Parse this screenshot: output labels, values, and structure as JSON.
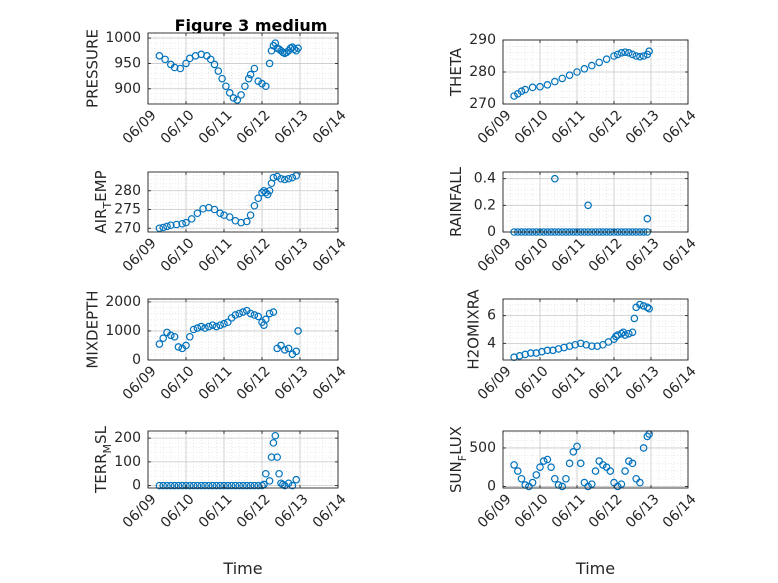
{
  "figure_title": "Figure 3 medium",
  "colors": {
    "marker": "#0072BD",
    "axis": "#262626",
    "grid": "#c8c8c8",
    "background": "#ffffff"
  },
  "chart_data": [
    {
      "type": "scatter",
      "title": "Figure 3 medium",
      "ylabel": "PRESSURE",
      "ylim": [
        870,
        1010
      ],
      "yticks": [
        900,
        950,
        1000
      ],
      "xlim": [
        0,
        5
      ],
      "xticks": [
        0,
        1,
        2,
        3,
        4,
        5
      ],
      "xticklabels": [
        "06/09",
        "06/10",
        "06/11",
        "06/12",
        "06/13",
        "06/14"
      ],
      "xlabel": "",
      "grid": true,
      "x": [
        0.3,
        0.45,
        0.6,
        0.7,
        0.85,
        1.0,
        1.1,
        1.25,
        1.4,
        1.55,
        1.65,
        1.75,
        1.85,
        1.95,
        2.05,
        2.15,
        2.25,
        2.35,
        2.45,
        2.55,
        2.65,
        2.7,
        2.8,
        2.9,
        3.0,
        3.1,
        3.2,
        3.25,
        3.3,
        3.35,
        3.4,
        3.45,
        3.5,
        3.55,
        3.6,
        3.65,
        3.7,
        3.75,
        3.8,
        3.85,
        3.9,
        3.95
      ],
      "y": [
        965,
        958,
        948,
        942,
        940,
        950,
        960,
        965,
        968,
        965,
        958,
        948,
        935,
        920,
        905,
        892,
        882,
        878,
        888,
        905,
        920,
        928,
        940,
        915,
        910,
        905,
        950,
        975,
        985,
        990,
        980,
        978,
        975,
        972,
        970,
        972,
        975,
        980,
        982,
        978,
        975,
        980
      ]
    },
    {
      "type": "scatter",
      "title": "",
      "ylabel": "THETA",
      "ylim": [
        270,
        290
      ],
      "yticks": [
        270,
        280,
        290
      ],
      "xlim": [
        0,
        5
      ],
      "xticks": [
        0,
        1,
        2,
        3,
        4,
        5
      ],
      "xticklabels": [
        "06/09",
        "06/10",
        "06/11",
        "06/12",
        "06/13",
        "06/14"
      ],
      "xlabel": "",
      "grid": true,
      "x": [
        0.3,
        0.4,
        0.5,
        0.6,
        0.8,
        1.0,
        1.2,
        1.4,
        1.6,
        1.8,
        2.0,
        2.2,
        2.4,
        2.6,
        2.8,
        3.0,
        3.1,
        3.2,
        3.3,
        3.4,
        3.5,
        3.6,
        3.7,
        3.8,
        3.9,
        3.95
      ],
      "y": [
        272.5,
        273.2,
        274,
        274.5,
        275.2,
        275.4,
        276,
        277,
        278,
        279,
        280,
        281,
        282,
        283,
        284,
        285,
        285.5,
        286,
        286.2,
        286,
        285.5,
        285,
        284.8,
        285,
        285.5,
        286.5
      ]
    },
    {
      "type": "scatter",
      "title": "",
      "ylabel": "AIR_TEMP",
      "ylim": [
        269,
        285
      ],
      "yticks": [
        270,
        275,
        280
      ],
      "xlim": [
        0,
        5
      ],
      "xticks": [
        0,
        1,
        2,
        3,
        4,
        5
      ],
      "xticklabels": [
        "06/09",
        "06/10",
        "06/11",
        "06/12",
        "06/13",
        "06/14"
      ],
      "xlabel": "",
      "grid": true,
      "x": [
        0.3,
        0.4,
        0.5,
        0.6,
        0.75,
        0.9,
        1.0,
        1.15,
        1.3,
        1.45,
        1.6,
        1.75,
        1.9,
        2.0,
        2.15,
        2.3,
        2.45,
        2.6,
        2.7,
        2.8,
        2.9,
        3.0,
        3.05,
        3.1,
        3.15,
        3.2,
        3.25,
        3.3,
        3.4,
        3.5,
        3.6,
        3.7,
        3.8,
        3.9
      ],
      "y": [
        270,
        270.2,
        270.5,
        270.8,
        271,
        271.2,
        271.5,
        272.5,
        274,
        275.2,
        275.5,
        275,
        274,
        273.5,
        273,
        272,
        271.5,
        271.8,
        273.5,
        276,
        278,
        279.5,
        280,
        279.5,
        279,
        280,
        282,
        283.5,
        283.8,
        283.2,
        283,
        283.2,
        283.5,
        284
      ]
    },
    {
      "type": "scatter",
      "title": "",
      "ylabel": "RAINFALL",
      "ylim": [
        0,
        0.45
      ],
      "yticks": [
        0,
        0.2,
        0.4
      ],
      "xlim": [
        0,
        5
      ],
      "xticks": [
        0,
        1,
        2,
        3,
        4,
        5
      ],
      "xticklabels": [
        "06/09",
        "06/10",
        "06/11",
        "06/12",
        "06/13",
        "06/14"
      ],
      "xlabel": "",
      "grid": true,
      "x": [
        0.3,
        0.4,
        0.5,
        0.6,
        0.7,
        0.8,
        0.9,
        1.0,
        1.1,
        1.2,
        1.3,
        1.4,
        1.5,
        1.6,
        1.7,
        1.8,
        1.9,
        2.0,
        2.1,
        2.2,
        2.3,
        2.4,
        2.5,
        2.6,
        2.7,
        2.8,
        2.9,
        3.0,
        3.1,
        3.2,
        3.3,
        3.4,
        3.5,
        3.6,
        3.7,
        3.8,
        3.9,
        1.4,
        2.3,
        3.9
      ],
      "y": [
        0,
        0,
        0,
        0,
        0,
        0,
        0,
        0,
        0,
        0,
        0,
        0,
        0,
        0,
        0,
        0,
        0,
        0,
        0,
        0,
        0,
        0,
        0,
        0,
        0,
        0,
        0,
        0,
        0,
        0,
        0,
        0,
        0,
        0,
        0,
        0,
        0,
        0.4,
        0.2,
        0.1
      ]
    },
    {
      "type": "scatter",
      "title": "",
      "ylabel": "MIXDEPTH",
      "ylim": [
        0,
        2100
      ],
      "yticks": [
        0,
        1000,
        2000
      ],
      "xlim": [
        0,
        5
      ],
      "xticks": [
        0,
        1,
        2,
        3,
        4,
        5
      ],
      "xticklabels": [
        "06/09",
        "06/10",
        "06/11",
        "06/12",
        "06/13",
        "06/14"
      ],
      "xlabel": "",
      "grid": true,
      "x": [
        0.3,
        0.4,
        0.5,
        0.6,
        0.7,
        0.8,
        0.9,
        1.0,
        1.1,
        1.2,
        1.3,
        1.4,
        1.5,
        1.6,
        1.7,
        1.8,
        1.9,
        2.0,
        2.1,
        2.2,
        2.3,
        2.4,
        2.5,
        2.6,
        2.7,
        2.8,
        2.9,
        3.0,
        3.05,
        3.1,
        3.2,
        3.3,
        3.4,
        3.5,
        3.6,
        3.7,
        3.8,
        3.9,
        3.95
      ],
      "y": [
        550,
        750,
        950,
        850,
        800,
        450,
        400,
        500,
        800,
        1050,
        1100,
        1150,
        1100,
        1150,
        1200,
        1150,
        1200,
        1250,
        1300,
        1450,
        1550,
        1600,
        1650,
        1700,
        1600,
        1550,
        1500,
        1300,
        1200,
        1400,
        1600,
        1650,
        400,
        500,
        350,
        400,
        200,
        300,
        1000
      ]
    },
    {
      "type": "scatter",
      "title": "",
      "ylabel": "H2OMIXRA",
      "ylim": [
        2.8,
        7.2
      ],
      "yticks": [
        4,
        6
      ],
      "xlim": [
        0,
        5
      ],
      "xticks": [
        0,
        1,
        2,
        3,
        4,
        5
      ],
      "xticklabels": [
        "06/09",
        "06/10",
        "06/11",
        "06/12",
        "06/13",
        "06/14"
      ],
      "xlabel": "",
      "grid": true,
      "x": [
        0.3,
        0.45,
        0.6,
        0.75,
        0.9,
        1.05,
        1.2,
        1.35,
        1.5,
        1.65,
        1.8,
        1.95,
        2.1,
        2.25,
        2.4,
        2.55,
        2.7,
        2.85,
        3.0,
        3.05,
        3.1,
        3.2,
        3.25,
        3.3,
        3.4,
        3.5,
        3.55,
        3.6,
        3.7,
        3.8,
        3.9,
        3.95
      ],
      "y": [
        3.0,
        3.1,
        3.2,
        3.3,
        3.3,
        3.4,
        3.5,
        3.5,
        3.6,
        3.7,
        3.8,
        3.9,
        4.0,
        3.9,
        3.8,
        3.8,
        3.9,
        4.1,
        4.3,
        4.5,
        4.6,
        4.7,
        4.8,
        4.6,
        4.7,
        4.8,
        5.8,
        6.6,
        6.8,
        6.7,
        6.6,
        6.5
      ]
    },
    {
      "type": "scatter",
      "title": "",
      "ylabel": "TERR_MSL",
      "ylim": [
        -10,
        230
      ],
      "yticks": [
        0,
        100,
        200
      ],
      "xlim": [
        0,
        5
      ],
      "xticks": [
        0,
        1,
        2,
        3,
        4,
        5
      ],
      "xticklabels": [
        "06/09",
        "06/10",
        "06/11",
        "06/12",
        "06/13",
        "06/14"
      ],
      "xlabel": "Time",
      "grid": true,
      "x": [
        0.3,
        0.4,
        0.5,
        0.6,
        0.7,
        0.8,
        0.9,
        1.0,
        1.1,
        1.2,
        1.3,
        1.4,
        1.5,
        1.6,
        1.7,
        1.8,
        1.9,
        2.0,
        2.1,
        2.2,
        2.3,
        2.4,
        2.5,
        2.6,
        2.7,
        2.8,
        2.9,
        3.0,
        3.05,
        3.1,
        3.2,
        3.25,
        3.3,
        3.35,
        3.4,
        3.45,
        3.5,
        3.55,
        3.6,
        3.7,
        3.8,
        3.9
      ],
      "y": [
        0,
        0,
        0,
        0,
        0,
        0,
        0,
        0,
        0,
        0,
        0,
        0,
        0,
        0,
        0,
        0,
        0,
        0,
        0,
        0,
        0,
        0,
        0,
        0,
        0,
        0,
        0,
        0,
        5,
        50,
        20,
        120,
        180,
        210,
        120,
        50,
        10,
        5,
        0,
        10,
        0,
        25
      ]
    },
    {
      "type": "scatter",
      "title": "",
      "ylabel": "SUN_FLUX",
      "ylim": [
        -20,
        720
      ],
      "yticks": [
        0,
        500
      ],
      "xlim": [
        0,
        5
      ],
      "xticks": [
        0,
        1,
        2,
        3,
        4,
        5
      ],
      "xticklabels": [
        "06/09",
        "06/10",
        "06/11",
        "06/12",
        "06/13",
        "06/14"
      ],
      "xlabel": "Time",
      "grid": true,
      "x": [
        0.3,
        0.4,
        0.5,
        0.6,
        0.7,
        0.8,
        0.9,
        1.0,
        1.1,
        1.2,
        1.3,
        1.4,
        1.5,
        1.6,
        1.7,
        1.8,
        1.9,
        2.0,
        2.1,
        2.2,
        2.3,
        2.4,
        2.5,
        2.6,
        2.7,
        2.8,
        2.9,
        3.0,
        3.1,
        3.2,
        3.3,
        3.4,
        3.5,
        3.6,
        3.7,
        3.8,
        3.9,
        3.95
      ],
      "y": [
        280,
        200,
        100,
        20,
        0,
        50,
        150,
        250,
        330,
        350,
        250,
        100,
        20,
        0,
        100,
        300,
        450,
        520,
        300,
        50,
        0,
        30,
        200,
        330,
        280,
        250,
        200,
        50,
        0,
        30,
        200,
        330,
        300,
        100,
        50,
        500,
        650,
        680
      ]
    }
  ]
}
